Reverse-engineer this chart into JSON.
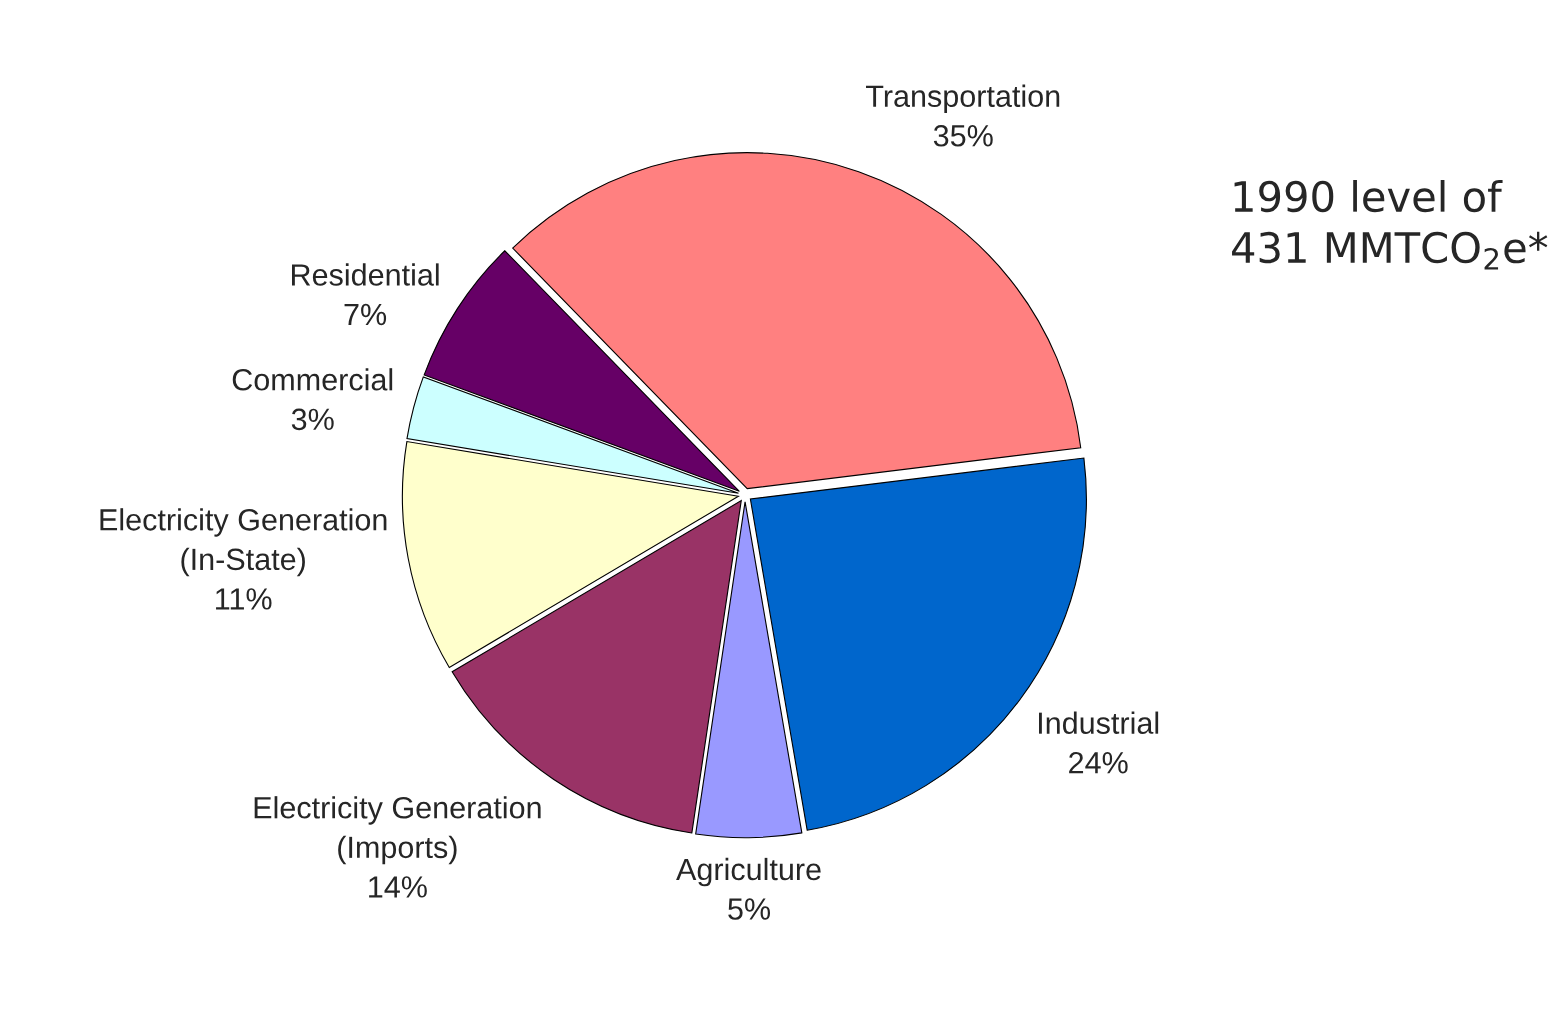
{
  "chart_data": {
    "type": "pie",
    "categories": [
      "Transportation",
      "Residential",
      "Commercial",
      "Electricity Generation\n(In-State)",
      "Electricity Generation\n(Imports)",
      "Agriculture",
      "Industrial"
    ],
    "values": [
      35,
      7,
      3,
      11,
      14,
      5,
      24
    ],
    "value_labels": [
      "35%",
      "7%",
      "3%",
      "11%",
      "14%",
      "5%",
      "24%"
    ],
    "colors": [
      "#ff8080",
      "#660066",
      "#ccffff",
      "#ffffcc",
      "#993366",
      "#9999ff",
      "#0066cc"
    ],
    "annotations": [
      "1990 level of\n431 MMTCO$_{2}$e*"
    ],
    "legend": false
  }
}
